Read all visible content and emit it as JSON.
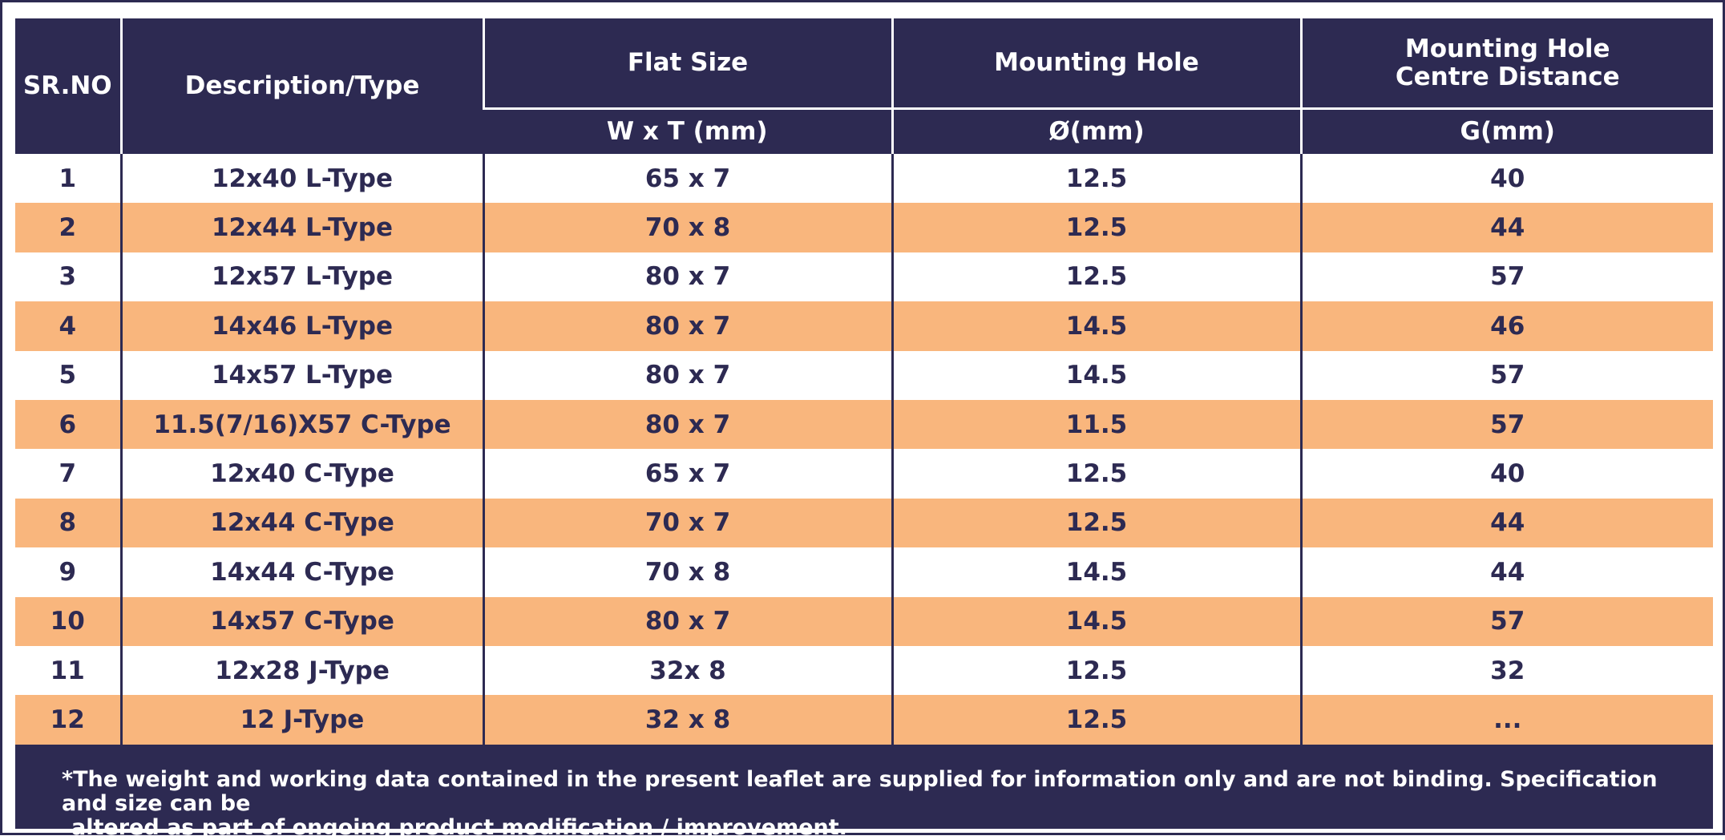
{
  "table": {
    "headers": {
      "sr_no": "SR.NO",
      "description": "Description/Type",
      "flat_size": "Flat Size",
      "flat_size_unit": "W x T (mm)",
      "mounting_hole": "Mounting Hole",
      "mounting_hole_unit": "Ø(mm)",
      "centre_distance_line1": "Mounting Hole",
      "centre_distance_line2": "Centre Distance",
      "centre_distance_unit": "G(mm)"
    },
    "rows": [
      {
        "sr": "1",
        "desc": "12x40 L-Type",
        "flat": "65 x 7",
        "hole": "12.5",
        "g": "40"
      },
      {
        "sr": "2",
        "desc": "12x44 L-Type",
        "flat": "70 x 8",
        "hole": "12.5",
        "g": "44"
      },
      {
        "sr": "3",
        "desc": "12x57 L-Type",
        "flat": "80 x 7",
        "hole": "12.5",
        "g": "57"
      },
      {
        "sr": "4",
        "desc": "14x46 L-Type",
        "flat": "80 x 7",
        "hole": "14.5",
        "g": "46"
      },
      {
        "sr": "5",
        "desc": "14x57 L-Type",
        "flat": "80 x 7",
        "hole": "14.5",
        "g": "57"
      },
      {
        "sr": "6",
        "desc": "11.5(7/16)X57 C-Type",
        "flat": "80 x 7",
        "hole": "11.5",
        "g": "57"
      },
      {
        "sr": "7",
        "desc": "12x40 C-Type",
        "flat": "65 x 7",
        "hole": "12.5",
        "g": "40"
      },
      {
        "sr": "8",
        "desc": "12x44 C-Type",
        "flat": "70 x 7",
        "hole": "12.5",
        "g": "44"
      },
      {
        "sr": "9",
        "desc": "14x44 C-Type",
        "flat": "70 x 8",
        "hole": "14.5",
        "g": "44"
      },
      {
        "sr": "10",
        "desc": "14x57 C-Type",
        "flat": "80 x 7",
        "hole": "14.5",
        "g": "57"
      },
      {
        "sr": "11",
        "desc": "12x28 J-Type",
        "flat": "32x 8",
        "hole": "12.5",
        "g": "32"
      },
      {
        "sr": "12",
        "desc": "12 J-Type",
        "flat": "32 x 8",
        "hole": "12.5",
        "g": "..."
      }
    ]
  },
  "footnote": {
    "line1": "*The weight and working data contained in the present leaflet are supplied for information only and are not binding. Specification and size can be",
    "line2": "altered as part of ongoing product modification / improvement."
  },
  "colors": {
    "navy": "#2d2a52",
    "peach": "#f9b67d",
    "white": "#ffffff"
  }
}
